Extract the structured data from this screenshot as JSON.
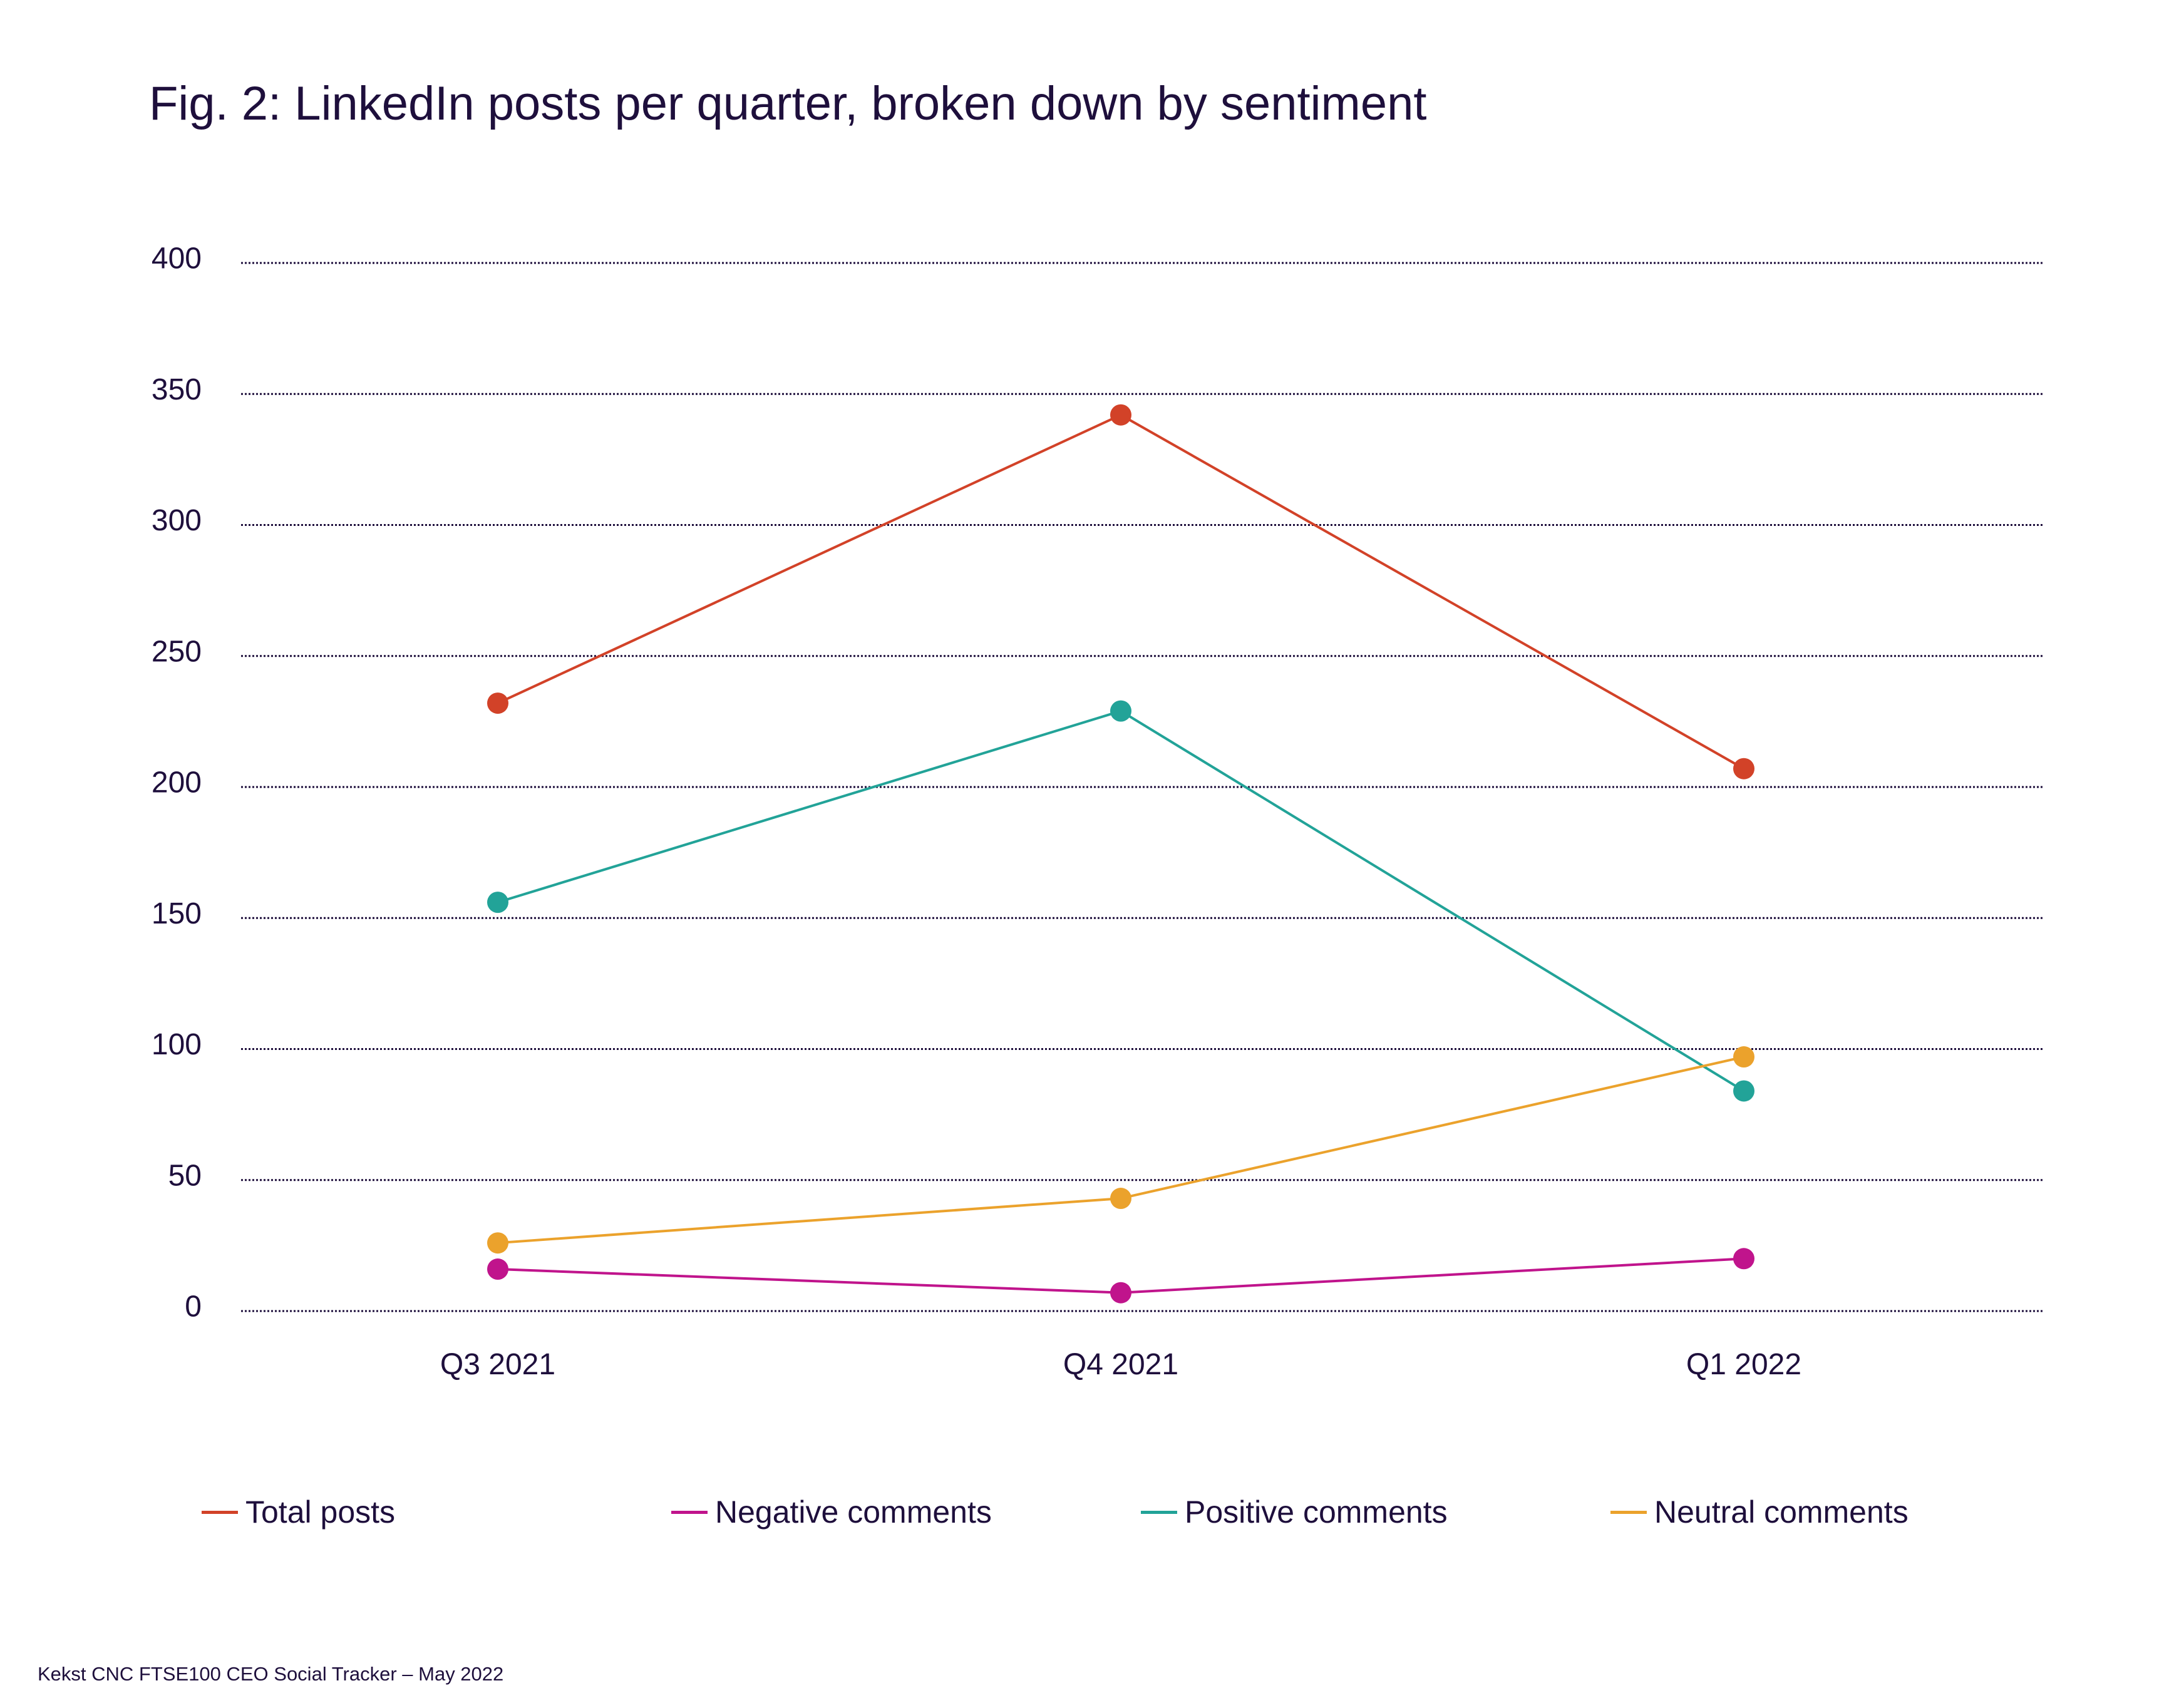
{
  "title": "Fig. 2: LinkedIn posts per quarter, broken down by sentiment",
  "footer": "Kekst CNC FTSE100 CEO Social Tracker – May 2022",
  "chart_data": {
    "type": "line",
    "categories": [
      "Q3 2021",
      "Q4 2021",
      "Q1 2022"
    ],
    "ylim": [
      0,
      400
    ],
    "yticks": [
      "0",
      "50",
      "100",
      "150",
      "200",
      "250",
      "300",
      "350",
      "400"
    ],
    "grid": true,
    "grid_style": "dotted",
    "legend_position": "bottom",
    "xlabel": "",
    "ylabel": "",
    "series": [
      {
        "name": "Total posts",
        "color": "#d24228",
        "values": [
          232,
          342,
          207
        ]
      },
      {
        "name": "Negative comments",
        "color": "#c0148c",
        "values": [
          16,
          7,
          20
        ]
      },
      {
        "name": "Positive comments",
        "color": "#22a398",
        "values": [
          156,
          229,
          84
        ]
      },
      {
        "name": "Neutral comments",
        "color": "#eba22c",
        "values": [
          26,
          43,
          97
        ]
      }
    ]
  }
}
